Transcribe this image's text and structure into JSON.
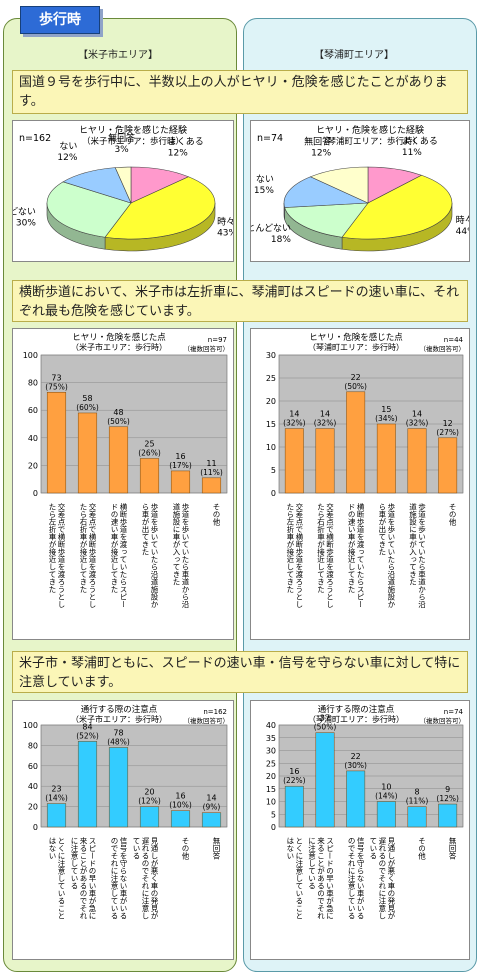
{
  "tag": "歩行時",
  "areas": {
    "left": "【米子市エリア】",
    "right": "【琴浦町エリア】"
  },
  "notes": [
    "国道９号を歩行中に、半数以上の人がヒヤリ・危険を感じたことがあります。",
    "横断歩道において、米子市は左折車に、琴浦町はスピードの速い車に、それぞれ最も危険を感じています。",
    "米子市・琴浦町ともに、スピードの速い車・信号を守らない車に対して特に注意しています。"
  ],
  "chart_data": [
    {
      "type": "pie",
      "title": "ヒヤリ・危険を感じた経験",
      "subtitle": "（米子市エリア：歩行時）",
      "n_label": "n=162",
      "slices": [
        {
          "label": "よくある",
          "value": 12,
          "pct_label": "12%",
          "color": "#ff99cc"
        },
        {
          "label": "時々ある",
          "value": 43,
          "pct_label": "43%",
          "color": "#ffff33"
        },
        {
          "label": "ほとんどない",
          "value": 30,
          "pct_label": "30%",
          "color": "#ccffcc"
        },
        {
          "label": "ない",
          "value": 12,
          "pct_label": "12%",
          "color": "#99ccff"
        },
        {
          "label": "無回答",
          "value": 3,
          "pct_label": "3%",
          "color": "#ffffcc"
        }
      ]
    },
    {
      "type": "pie",
      "title": "ヒヤリ・危険を感じた経験",
      "subtitle": "（琴浦町エリア：歩行時）",
      "n_label": "n=74",
      "slices": [
        {
          "label": "よくある",
          "value": 11,
          "pct_label": "11%",
          "color": "#ff99cc"
        },
        {
          "label": "時々ある",
          "value": 44,
          "pct_label": "44%",
          "color": "#ffff33"
        },
        {
          "label": "ほとんどない",
          "value": 18,
          "pct_label": "18%",
          "color": "#ccffcc"
        },
        {
          "label": "ない",
          "value": 15,
          "pct_label": "15%",
          "color": "#99ccff"
        },
        {
          "label": "無回答",
          "value": 12,
          "pct_label": "12%",
          "color": "#ffffcc"
        }
      ]
    },
    {
      "type": "bar",
      "title": "ヒヤリ・危険を感じた点",
      "subtitle": "（米子市エリア：歩行時）",
      "n_label": "n=97",
      "n_sub": "（複数回答可）",
      "color": "#ffa040",
      "ylim": [
        0,
        100
      ],
      "yticks": [
        0,
        20,
        40,
        60,
        80,
        100
      ],
      "categories": [
        "交差点で横断歩道を渡ろうとしたら左折車が接近してきた",
        "交差点で横断歩道を渡ろうとしたら右折車が接近してきた",
        "横断歩道を渡っていたらスピードの速い車が接近してきた",
        "歩道を歩いていたら沿道施設から車が出てきた",
        "歩道を歩いていたら車道から沿道施設に車が入ってきた",
        "その他"
      ],
      "values": [
        73,
        58,
        48,
        25,
        16,
        11
      ],
      "pct": [
        "(75%)",
        "(60%)",
        "(50%)",
        "(26%)",
        "(17%)",
        "(11%)"
      ]
    },
    {
      "type": "bar",
      "title": "ヒヤリ・危険を感じた点",
      "subtitle": "（琴浦町エリア：歩行時）",
      "n_label": "n=44",
      "n_sub": "（複数回答可）",
      "color": "#ffa040",
      "ylim": [
        0,
        30
      ],
      "yticks": [
        0,
        5,
        10,
        15,
        20,
        25,
        30
      ],
      "categories": [
        "交差点で横断歩道を渡ろうとしたら左折車が接近してきた",
        "交差点で横断歩道を渡ろうとしたら右折車が接近してきた",
        "横断歩道を渡っていたらスピードの速い車が接近してきた",
        "歩道を歩いていたら沿道施設から車が出てきた",
        "歩道を歩いていたら車道から沿道施設に車が入ってきた",
        "その他"
      ],
      "values": [
        14,
        14,
        22,
        15,
        14,
        12
      ],
      "pct": [
        "(32%)",
        "(32%)",
        "(50%)",
        "(34%)",
        "(32%)",
        "(27%)"
      ]
    },
    {
      "type": "bar",
      "title": "通行する際の注意点",
      "subtitle": "（米子市エリア：歩行時）",
      "n_label": "n=162",
      "n_sub": "（複数回答可）",
      "color": "#33ccff",
      "ylim": [
        0,
        100
      ],
      "yticks": [
        0,
        20,
        40,
        60,
        80,
        100
      ],
      "categories": [
        "とくに注意していることはない",
        "スピードの早い車が急に来ることがあるのでそれに注意している",
        "信号を守らない車がいるのでそれに注意している",
        "見通しが悪く車の発見が遅れるのでそれに注意している",
        "その他",
        "無回答"
      ],
      "values": [
        23,
        84,
        78,
        20,
        16,
        14
      ],
      "pct": [
        "(14%)",
        "(52%)",
        "(48%)",
        "(12%)",
        "(10%)",
        "(9%)"
      ]
    },
    {
      "type": "bar",
      "title": "通行する際の注意点",
      "subtitle": "（琴浦町エリア：歩行時）",
      "n_label": "n=74",
      "n_sub": "（複数回答可）",
      "color": "#33ccff",
      "ylim": [
        0,
        40
      ],
      "yticks": [
        0,
        5,
        10,
        15,
        20,
        25,
        30,
        35,
        40
      ],
      "categories": [
        "とくに注意していることはない",
        "スピードの早い車が急に来ることがあるのでそれに注意している",
        "信号を守らない車がいるのでそれに注意している",
        "見通しが悪く車の発見が遅れるのでそれに注意している",
        "その他",
        "無回答"
      ],
      "values": [
        16,
        37,
        22,
        10,
        8,
        9
      ],
      "pct": [
        "(22%)",
        "(50%)",
        "(30%)",
        "(14%)",
        "(11%)",
        "(12%)"
      ]
    }
  ]
}
